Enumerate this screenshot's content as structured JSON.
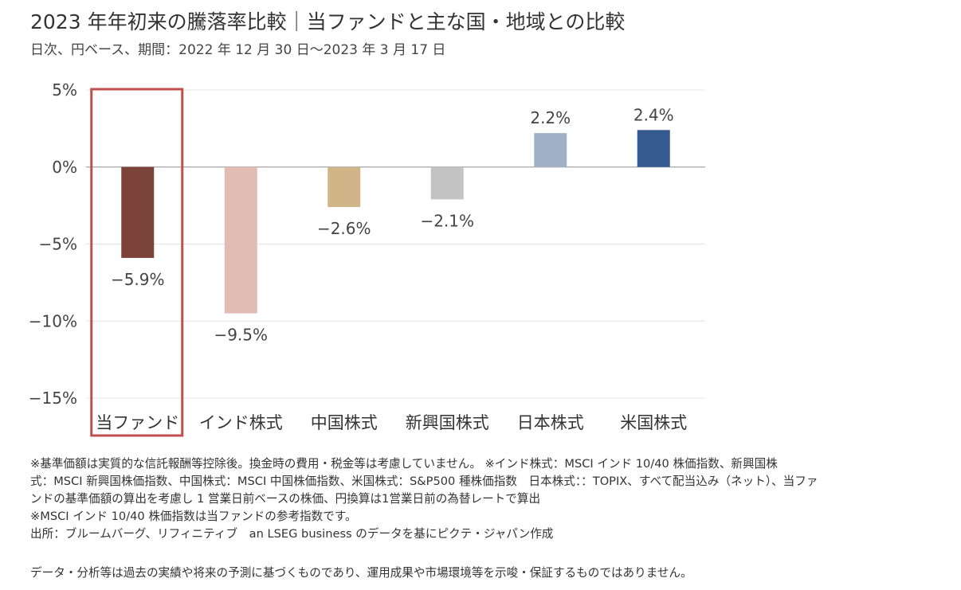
{
  "header": {
    "title": "2023 年年初来の騰落率比較｜当ファンドと主な国・地域との比較",
    "subtitle": "日次、円ベース、期間：2022 年 12 月 30 日～2023 年 3 月 17 日"
  },
  "chart_data": {
    "type": "bar",
    "categories": [
      "当ファンド",
      "インド株式",
      "中国株式",
      "新興国株式",
      "日本株式",
      "米国株式"
    ],
    "values": [
      -5.9,
      -9.5,
      -2.6,
      -2.1,
      2.2,
      2.4
    ],
    "data_labels": [
      "−5.9%",
      "−9.5%",
      "−2.6%",
      "−2.1%",
      "2.2%",
      "2.4%"
    ],
    "colors": [
      "#7b4239",
      "#e2bcb3",
      "#d1b588",
      "#c3c3c3",
      "#9fb0c7",
      "#345a8f"
    ],
    "ylim": [
      -15,
      5
    ],
    "yticks": [
      5,
      0,
      -5,
      -10,
      -15
    ],
    "ytick_labels": [
      "5%",
      "0%",
      "−5%",
      "−10%",
      "−15%"
    ],
    "highlight_index": 0,
    "highlight_color": "#c0504d",
    "grid": true
  },
  "notes": [
    "※基準価額は実質的な信託報酬等控除後。換金時の費用・税金等は考慮していません。 ※インド株式：MSCI インド 10/40 株価指数、新興国株",
    "式：MSCI 新興国株価指数、中国株式：MSCI 中国株価指数、米国株式：S&P500 種株価指数　日本株式：：TOPIX、すべて配当込み（ネット）、当ファ",
    "ンドの基準価額の算出を考慮し 1 営業日前ベースの株価、円換算は1営業日前の為替レートで算出",
    "※MSCI インド 10/40 株価指数は当ファンドの参考指数です。",
    "出所：ブルームバーグ、リフィニティブ　an LSEG business のデータを基にピクテ・ジャパン作成"
  ],
  "disclaimer": "データ・分析等は過去の実績や将来の予測に基づくものであり、運用成果や市場環境等を示唆・保証するものではありません。"
}
